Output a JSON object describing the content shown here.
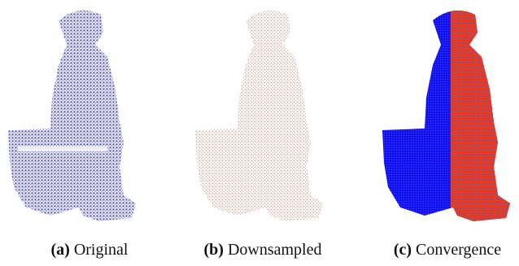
{
  "panels": [
    {
      "label": "(a)",
      "caption": "Original"
    },
    {
      "label": "(b)",
      "caption": "Downsampled"
    },
    {
      "label": "(c)",
      "caption": "Convergence"
    }
  ]
}
